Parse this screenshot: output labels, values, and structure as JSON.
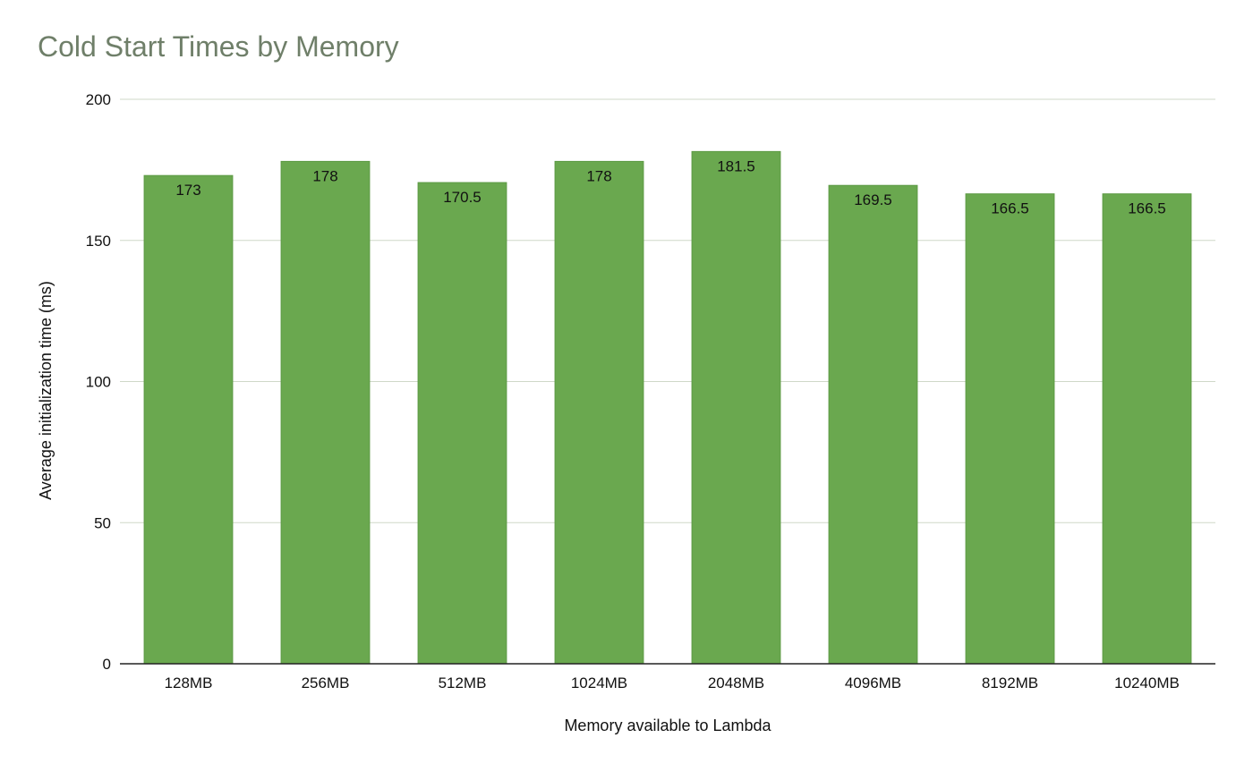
{
  "chart_data": {
    "type": "bar",
    "title": "Cold Start Times by Memory",
    "xlabel": "Memory available to Lambda",
    "ylabel": "Average initialization time (ms)",
    "categories": [
      "128MB",
      "256MB",
      "512MB",
      "1024MB",
      "2048MB",
      "4096MB",
      "8192MB",
      "10240MB"
    ],
    "values": [
      173,
      178,
      170.5,
      178,
      181.5,
      169.5,
      166.5,
      166.5
    ],
    "value_labels": [
      "173",
      "178",
      "170.5",
      "178",
      "181.5",
      "169.5",
      "166.5",
      "166.5"
    ],
    "ylim": [
      0,
      200
    ],
    "yticks": [
      0,
      50,
      100,
      150,
      200
    ],
    "grid": true,
    "colors": {
      "bar": "#6aa84f",
      "bar_edge": "#5d9a45",
      "title": "#6f7f69",
      "grid": "#cfd8c8",
      "axis": "#222222"
    }
  }
}
